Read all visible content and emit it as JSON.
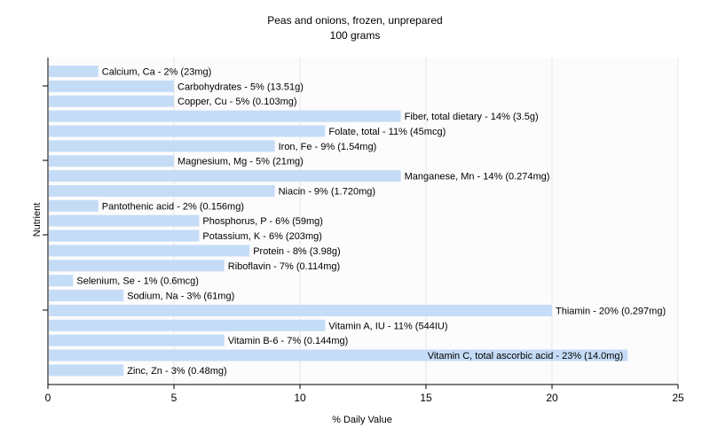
{
  "chart_data": {
    "type": "bar",
    "orientation": "horizontal",
    "title": "Peas and onions, frozen, unprepared",
    "subtitle": "100 grams",
    "xlabel": "% Daily Value",
    "ylabel": "Nutrient",
    "xlim": [
      0,
      25
    ],
    "xticks": [
      0,
      5,
      10,
      15,
      20,
      25
    ],
    "grid": true,
    "colors": {
      "bar": "#c5dcf7",
      "grid": "#e6e6e6",
      "axis": "#000000",
      "plot_bg": "#fcfcfc"
    },
    "categories": [
      "Calcium, Ca",
      "Carbohydrates",
      "Copper, Cu",
      "Fiber, total dietary",
      "Folate, total",
      "Iron, Fe",
      "Magnesium, Mg",
      "Manganese, Mn",
      "Niacin",
      "Pantothenic acid",
      "Phosphorus, P",
      "Potassium, K",
      "Protein",
      "Riboflavin",
      "Selenium, Se",
      "Sodium, Na",
      "Thiamin",
      "Vitamin A, IU",
      "Vitamin B-6",
      "Vitamin C, total ascorbic acid",
      "Zinc, Zn"
    ],
    "values": [
      2,
      5,
      5,
      14,
      11,
      9,
      5,
      14,
      9,
      2,
      6,
      6,
      8,
      7,
      1,
      3,
      20,
      11,
      7,
      23,
      3
    ],
    "labels": [
      "Calcium, Ca - 2% (23mg)",
      "Carbohydrates - 5% (13.51g)",
      "Copper, Cu - 5% (0.103mg)",
      "Fiber, total dietary - 14% (3.5g)",
      "Folate, total - 11% (45mcg)",
      "Iron, Fe - 9% (1.54mg)",
      "Magnesium, Mg - 5% (21mg)",
      "Manganese, Mn - 14% (0.274mg)",
      "Niacin - 9% (1.720mg)",
      "Pantothenic acid - 2% (0.156mg)",
      "Phosphorus, P - 6% (59mg)",
      "Potassium, K - 6% (203mg)",
      "Protein - 8% (3.98g)",
      "Riboflavin - 7% (0.114mg)",
      "Selenium, Se - 1% (0.6mcg)",
      "Sodium, Na - 3% (61mg)",
      "Thiamin - 20% (0.297mg)",
      "Vitamin A, IU - 11% (544IU)",
      "Vitamin B-6 - 7% (0.144mg)",
      "Vitamin C, total ascorbic acid - 23% (14.0mg)",
      "Zinc, Zn - 3% (0.48mg)"
    ]
  }
}
